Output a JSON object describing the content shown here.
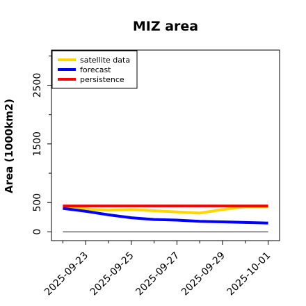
{
  "chart_data": {
    "type": "line",
    "title": "MIZ area",
    "ylabel": "Area (1000km2)",
    "xlabel": "",
    "ylim": [
      -150,
      3100
    ],
    "xlim": [
      "2025-09-21T12:00",
      "2025-10-01T12:00"
    ],
    "y_ticks": [
      0,
      500,
      1500,
      2500
    ],
    "y_minor_ticks": [
      1000,
      2000,
      3000
    ],
    "x_ticks": [
      {
        "date": "2025-09-23",
        "label": "2025-09-23",
        "color": "#228B22"
      },
      {
        "date": "2025-09-25",
        "label": "2025-09-25",
        "color": "#000000"
      },
      {
        "date": "2025-09-27",
        "label": "2025-09-27",
        "color": "#000000"
      },
      {
        "date": "2025-09-29",
        "label": "2025-09-29",
        "color": "#000000"
      },
      {
        "date": "2025-10-01",
        "label": "2025-10-01",
        "color": "#000000"
      }
    ],
    "x_minor_ticks": [
      "2025-09-22",
      "2025-09-24",
      "2025-09-26",
      "2025-09-28",
      "2025-09-30"
    ],
    "legend_position": "top-left",
    "series": [
      {
        "name": "satellite data",
        "color": "#FFD700",
        "x": [
          "2025-09-22",
          "2025-09-23",
          "2025-09-24",
          "2025-09-25",
          "2025-09-26",
          "2025-09-27",
          "2025-09-28",
          "2025-09-29",
          "2025-09-30",
          "2025-10-01"
        ],
        "y": [
          420,
          390,
          370,
          380,
          360,
          340,
          320,
          380,
          430,
          430
        ]
      },
      {
        "name": "forecast",
        "color": "#0000FF",
        "x": [
          "2025-09-22",
          "2025-09-23",
          "2025-09-24",
          "2025-09-25",
          "2025-09-26",
          "2025-09-27",
          "2025-09-28",
          "2025-09-29",
          "2025-09-30",
          "2025-10-01"
        ],
        "y": [
          400,
          350,
          290,
          240,
          210,
          200,
          180,
          170,
          160,
          150
        ]
      },
      {
        "name": "persistence",
        "color": "#FF0000",
        "x": [
          "2025-09-22",
          "2025-09-23",
          "2025-09-24",
          "2025-09-25",
          "2025-09-26",
          "2025-09-27",
          "2025-09-28",
          "2025-09-29",
          "2025-09-30",
          "2025-10-01"
        ],
        "y": [
          440,
          440,
          440,
          440,
          440,
          440,
          440,
          440,
          440,
          440
        ]
      }
    ],
    "baseline": {
      "color": "#666666",
      "y": 0,
      "from": "2025-09-22",
      "to": "2025-10-01"
    }
  }
}
